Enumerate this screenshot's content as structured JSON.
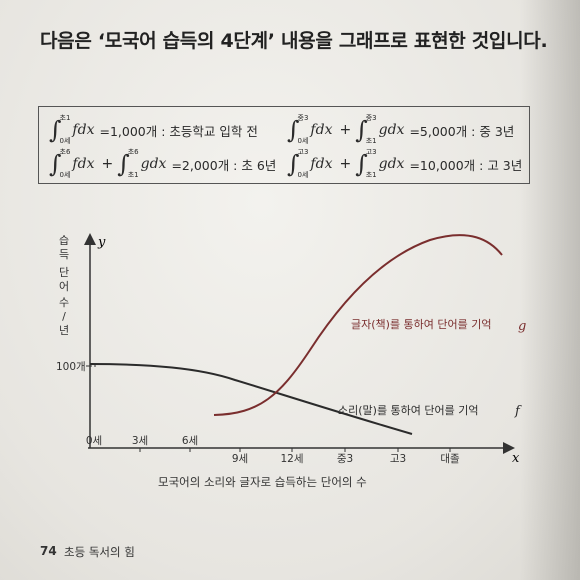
{
  "heading": "다음은 ‘모국어 습득의 4단계’ 내용을 그래프로 표현한 것입니다.",
  "formulas": [
    {
      "terms": [
        {
          "upper": "초1",
          "lower": "0세",
          "integrand": "fdx"
        }
      ],
      "rest": "=1,000개 : 초등학교 입학 전"
    },
    {
      "terms": [
        {
          "upper": "중3",
          "lower": "0세",
          "integrand": "fdx"
        },
        {
          "upper": "중3",
          "lower": "초1",
          "integrand": "gdx"
        }
      ],
      "rest": "=5,000개 : 중 3년"
    },
    {
      "terms": [
        {
          "upper": "초6",
          "lower": "0세",
          "integrand": "fdx"
        },
        {
          "upper": "초6",
          "lower": "초1",
          "integrand": "gdx"
        }
      ],
      "rest": "=2,000개 : 초 6년"
    },
    {
      "terms": [
        {
          "upper": "고3",
          "lower": "0세",
          "integrand": "fdx"
        },
        {
          "upper": "고3",
          "lower": "초1",
          "integrand": "gdx"
        }
      ],
      "rest": "=10,000개 : 고 3년"
    }
  ],
  "graph": {
    "y_axis_letter": "y",
    "x_axis_letter": "x",
    "y_axis_title": [
      "습",
      "득",
      "단",
      "어",
      "수",
      "/",
      "년"
    ],
    "y_tick": "100개",
    "x_ticks": [
      "0세",
      "3세",
      "6세",
      "9세",
      "12세",
      "중3",
      "고3",
      "대졸"
    ],
    "x_axis_title": "모국어의 소리와 글자로 습득하는 단어의 수",
    "curve_g_label": "글자(책)를 통하여 단어를 기억",
    "curve_g_letter": "g",
    "curve_f_label": "소리(말)를 통하여 단어를 기억",
    "curve_f_letter": "f",
    "colors": {
      "f": "#2b2b2b",
      "g": "#7a2e2e"
    }
  },
  "footer": {
    "page": "74",
    "title": "초등 독서의 힘"
  }
}
